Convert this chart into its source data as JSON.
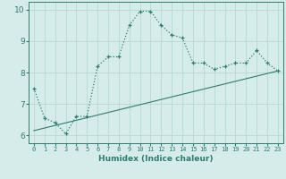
{
  "xlabel": "Humidex (Indice chaleur)",
  "ylabel": "",
  "xlim": [
    -0.5,
    23.5
  ],
  "ylim": [
    5.75,
    10.25
  ],
  "xticks": [
    0,
    1,
    2,
    3,
    4,
    5,
    6,
    7,
    8,
    9,
    10,
    11,
    12,
    13,
    14,
    15,
    16,
    17,
    18,
    19,
    20,
    21,
    22,
    23
  ],
  "yticks": [
    6,
    7,
    8,
    9,
    10
  ],
  "line_color": "#2e7d6e",
  "bg_color": "#d6ecea",
  "grid_color": "#b8d8d4",
  "wavy_x": [
    0,
    1,
    2,
    3,
    4,
    5,
    6,
    7,
    8,
    9,
    10,
    11,
    12,
    13,
    14,
    15,
    16,
    17,
    18,
    19,
    20,
    21,
    22,
    23
  ],
  "wavy_y": [
    7.5,
    6.55,
    6.4,
    6.05,
    6.6,
    6.6,
    8.2,
    8.5,
    8.5,
    9.5,
    9.95,
    9.95,
    9.5,
    9.2,
    9.1,
    8.3,
    8.3,
    8.1,
    8.2,
    8.3,
    8.3,
    8.7,
    8.3,
    8.05
  ],
  "trend_x": [
    0,
    23
  ],
  "trend_y": [
    6.15,
    8.05
  ],
  "xlabel_fontsize": 6.5,
  "tick_fontsize_x": 5.0,
  "tick_fontsize_y": 6.5
}
